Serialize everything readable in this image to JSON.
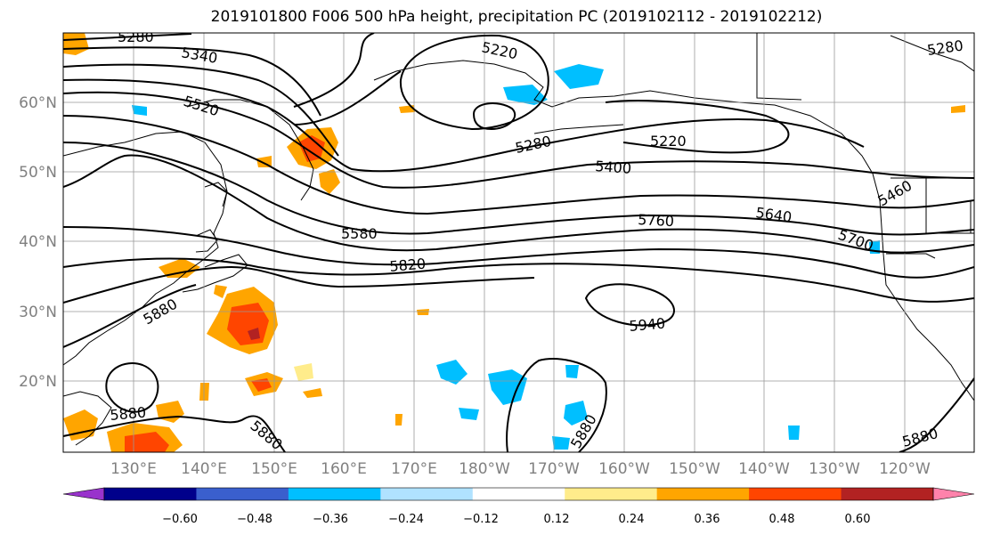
{
  "title": "2019101800 F006 500 hPa height, precipitation PC (2019102112 - 2019102212)",
  "lat_labels": [
    "60°N",
    "50°N",
    "40°N",
    "30°N",
    "20°N"
  ],
  "lon_labels": [
    "130°E",
    "140°E",
    "150°E",
    "160°E",
    "170°E",
    "180°W",
    "170°W",
    "160°W",
    "150°W",
    "140°W",
    "130°W",
    "120°W"
  ],
  "contour_labels": [
    "5280",
    "5340",
    "5520",
    "5220",
    "5280",
    "5220",
    "5400",
    "5460",
    "5580",
    "5760",
    "5640",
    "5700",
    "5820",
    "5880",
    "5940",
    "5880",
    "5880",
    "5880",
    "5880",
    "5280"
  ],
  "colorbar": {
    "ticks": [
      "−0.60",
      "−0.48",
      "−0.36",
      "−0.24",
      "−0.12",
      "0.12",
      "0.24",
      "0.36",
      "0.48",
      "0.60"
    ],
    "colors": [
      "#9933cc",
      "#00008b",
      "#3a5fcd",
      "#00bfff",
      "#b0e2ff",
      "#ffffff",
      "#ffec8b",
      "#ffa500",
      "#ff4500",
      "#b22222",
      "#ff82ab"
    ]
  }
}
